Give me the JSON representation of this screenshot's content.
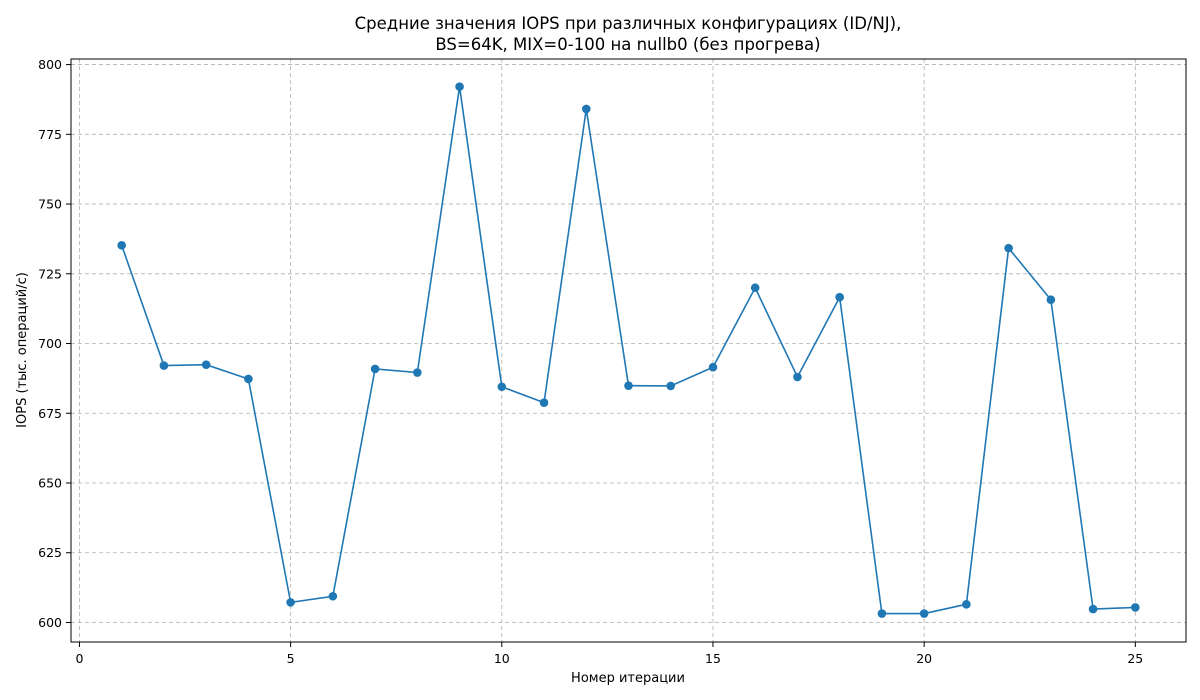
{
  "chart_data": {
    "type": "line",
    "title_lines": [
      "Средние значения IOPS при различных конфигурациях (ID/NJ),",
      "BS=64K, MIX=0-100 на nullb0 (без прогрева)"
    ],
    "xlabel": "Номер итерации",
    "ylabel": "IOPS (тыс. операций/с)",
    "xlim": [
      -0.2,
      26.2
    ],
    "ylim": [
      593,
      802
    ],
    "xticks": [
      0,
      5,
      10,
      15,
      20,
      25
    ],
    "yticks": [
      600,
      625,
      650,
      675,
      700,
      725,
      750,
      775,
      800
    ],
    "grid": true,
    "color": "#1f77b4",
    "x": [
      1,
      2,
      3,
      4,
      5,
      6,
      7,
      8,
      9,
      10,
      11,
      12,
      13,
      14,
      15,
      16,
      17,
      18,
      19,
      20,
      21,
      22,
      23,
      24,
      25
    ],
    "values": [
      735.2,
      692.1,
      692.4,
      687.3,
      607.2,
      609.4,
      690.9,
      689.6,
      792.1,
      684.5,
      678.8,
      784.1,
      684.9,
      684.8,
      691.5,
      720.0,
      688.0,
      716.6,
      603.2,
      603.2,
      606.5,
      734.2,
      715.7,
      604.8,
      605.4
    ]
  }
}
